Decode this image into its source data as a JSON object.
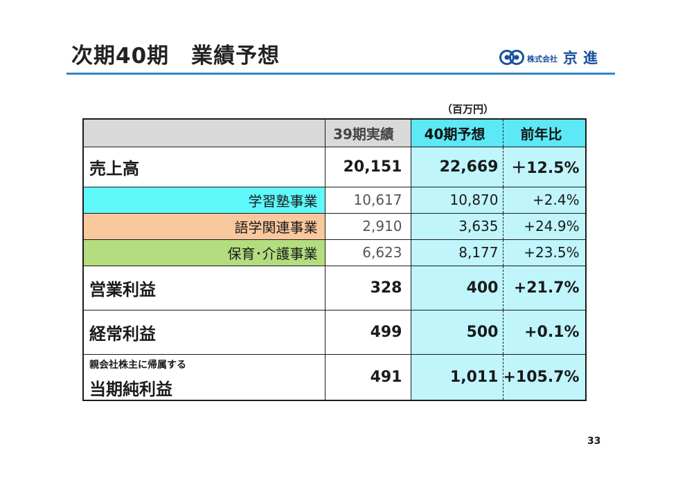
{
  "title": "次期40期　業績予想",
  "logo": {
    "company_prefix": "株式会社",
    "company_name": "京進",
    "mark_color": "#1a4f9c"
  },
  "unit": "（百万円）",
  "table": {
    "headers": {
      "label": "",
      "prev": "39期実績",
      "forecast": "40期予想",
      "ratio": "前年比"
    },
    "rows": [
      {
        "label": "売上高",
        "prev": "20,151",
        "forecast": "22,669",
        "ratio": "＋12.5%"
      },
      {
        "label": "学習塾事業",
        "prev": "10,617",
        "forecast": "10,870",
        "ratio": "+2.4%",
        "color": "#5ff8fb"
      },
      {
        "label": "語学関連事業",
        "prev": "2,910",
        "forecast": "3,635",
        "ratio": "+24.9%",
        "color": "#fac89d"
      },
      {
        "label": "保育･介護事業",
        "prev": "6,623",
        "forecast": "8,177",
        "ratio": "+23.5%",
        "color": "#b3dd7f"
      },
      {
        "label": "営業利益",
        "prev": "328",
        "forecast": "400",
        "ratio": "+21.7%"
      },
      {
        "label": "経常利益",
        "prev": "499",
        "forecast": "500",
        "ratio": "+0.1%"
      },
      {
        "label_prefix": "親会社株主に帰属する",
        "label": "当期純利益",
        "prev": "491",
        "forecast": "1,011",
        "ratio": "+105.7%"
      }
    ]
  },
  "page_number": "33",
  "colors": {
    "accent_rule": "#2e86c8",
    "forecast_header": "#5ce8f4",
    "forecast_cells": "#bff5fb",
    "header_gray": "#d9d9d9"
  }
}
